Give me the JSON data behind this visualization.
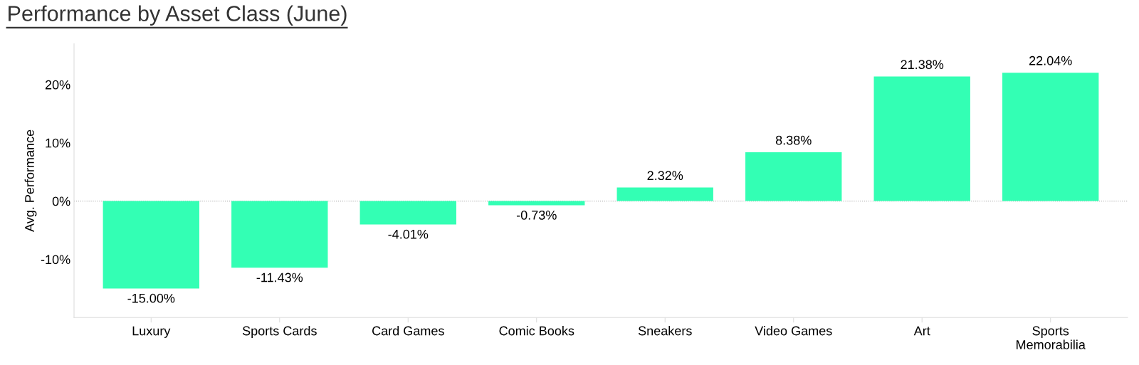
{
  "chart_data": {
    "type": "bar",
    "title": "Performance by Asset Class (June)",
    "ylabel": "Avg. Performance",
    "categories": [
      "Luxury",
      "Sports Cards",
      "Card Games",
      "Comic Books",
      "Sneakers",
      "Video Games",
      "Art",
      "Sports\nMemorabilia"
    ],
    "values": [
      -15.0,
      -11.43,
      -4.01,
      -0.73,
      2.32,
      8.38,
      21.38,
      22.04
    ],
    "value_labels": [
      "-15.00%",
      "-11.43%",
      "-4.01%",
      "-0.73%",
      "2.32%",
      "8.38%",
      "21.38%",
      "22.04%"
    ],
    "color": "#33ffb4",
    "ylim": [
      -20,
      27
    ],
    "yticks": [
      {
        "value": -10,
        "label": "-10%"
      },
      {
        "value": 0,
        "label": "0%"
      },
      {
        "value": 10,
        "label": "10%"
      },
      {
        "value": 20,
        "label": "20%"
      }
    ],
    "ref_lines": [
      {
        "axis": "y",
        "value": 0,
        "color": "#b0b0b0",
        "line_style": "dotted"
      }
    ],
    "grid": false,
    "legend": false
  }
}
